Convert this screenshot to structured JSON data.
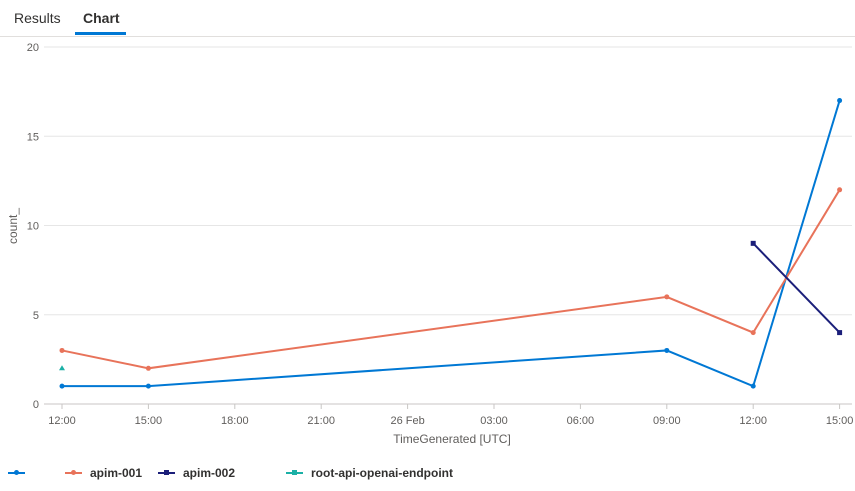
{
  "tabs": [
    {
      "label": "Results",
      "active": false
    },
    {
      "label": "Chart",
      "active": true
    }
  ],
  "colors": {
    "accent": "#0078d4",
    "grid": "#e6e6e6",
    "axis_text": "#605e5c"
  },
  "chart_data": {
    "type": "line",
    "title": "",
    "xlabel": "TimeGenerated [UTC]",
    "ylabel": "count_",
    "ylim": [
      0,
      20
    ],
    "yticks": [
      0,
      5,
      10,
      15,
      20
    ],
    "xticks": [
      {
        "label": "12:00",
        "hours": 0
      },
      {
        "label": "15:00",
        "hours": 3
      },
      {
        "label": "18:00",
        "hours": 6
      },
      {
        "label": "21:00",
        "hours": 9
      },
      {
        "label": "26 Feb",
        "hours": 12
      },
      {
        "label": "03:00",
        "hours": 15
      },
      {
        "label": "06:00",
        "hours": 18
      },
      {
        "label": "09:00",
        "hours": 21
      },
      {
        "label": "12:00",
        "hours": 24
      },
      {
        "label": "15:00",
        "hours": 27
      }
    ],
    "grid": "horizontal",
    "legend_position": "bottom",
    "series": [
      {
        "name": "",
        "color": "#0078d4",
        "marker": "circle",
        "points": [
          {
            "x": 0,
            "y": 1
          },
          {
            "x": 3,
            "y": 1
          },
          {
            "x": 21,
            "y": 3
          },
          {
            "x": 24,
            "y": 1
          },
          {
            "x": 27,
            "y": 17
          }
        ]
      },
      {
        "name": "apim-001",
        "color": "#e8735a",
        "marker": "circle",
        "points": [
          {
            "x": 0,
            "y": 3
          },
          {
            "x": 3,
            "y": 2
          },
          {
            "x": 21,
            "y": 6
          },
          {
            "x": 24,
            "y": 4
          },
          {
            "x": 27,
            "y": 12
          }
        ]
      },
      {
        "name": "apim-002",
        "color": "#1b1f7a",
        "marker": "square",
        "points": [
          {
            "x": 24,
            "y": 9
          },
          {
            "x": 27,
            "y": 4
          }
        ]
      },
      {
        "name": "root-api-openai-endpoint",
        "color": "#1bb0a6",
        "marker": "triangle",
        "points": [
          {
            "x": 0,
            "y": 2
          }
        ]
      }
    ]
  }
}
